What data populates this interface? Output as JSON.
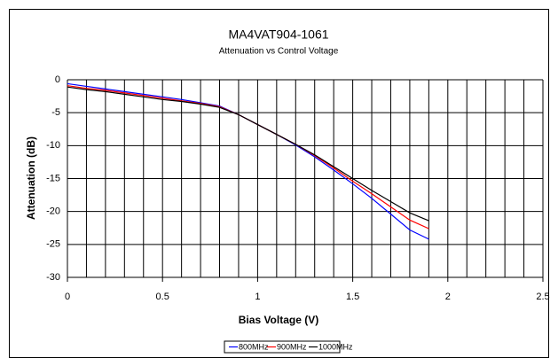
{
  "chart_data": {
    "type": "line",
    "title": "MA4VAT904-1061",
    "subtitle": "Attenuation vs Control Voltage",
    "x_label": "Bias Voltage (V)",
    "y_label": "Attenuation (dB)",
    "x": [
      0,
      0.1,
      0.2,
      0.3,
      0.4,
      0.5,
      0.6,
      0.7,
      0.8,
      0.9,
      1.0,
      1.1,
      1.2,
      1.3,
      1.4,
      1.5,
      1.6,
      1.7,
      1.8,
      1.9
    ],
    "series": [
      {
        "name": "800MHz",
        "color": "#0000ff",
        "values": [
          -0.6,
          -1.0,
          -1.4,
          -1.8,
          -2.2,
          -2.6,
          -3.0,
          -3.5,
          -4.0,
          -5.3,
          -6.8,
          -8.3,
          -9.9,
          -11.7,
          -13.7,
          -15.8,
          -18.0,
          -20.4,
          -22.8,
          -24.2
        ]
      },
      {
        "name": "900MHz",
        "color": "#ff0000",
        "values": [
          -0.9,
          -1.3,
          -1.6,
          -2.0,
          -2.4,
          -2.8,
          -3.2,
          -3.6,
          -4.1,
          -5.3,
          -6.8,
          -8.3,
          -9.8,
          -11.5,
          -13.4,
          -15.4,
          -17.3,
          -19.3,
          -21.3,
          -22.6
        ]
      },
      {
        "name": "1000MHz",
        "color": "#000000",
        "values": [
          -1.1,
          -1.5,
          -1.8,
          -2.2,
          -2.6,
          -3.0,
          -3.3,
          -3.7,
          -4.2,
          -5.3,
          -6.8,
          -8.3,
          -9.8,
          -11.4,
          -13.2,
          -15.0,
          -16.8,
          -18.5,
          -20.2,
          -21.4
        ]
      }
    ],
    "xlim": [
      0,
      2.5
    ],
    "xticks": [
      0,
      0.5,
      1,
      1.5,
      2,
      2.5
    ],
    "xminorticks": [
      0.1,
      0.2,
      0.3,
      0.4,
      0.6,
      0.7,
      0.8,
      0.9,
      1.1,
      1.2,
      1.3,
      1.4,
      1.6,
      1.7,
      1.8,
      1.9,
      2.1,
      2.2,
      2.3,
      2.4
    ],
    "ylim": [
      -30,
      0
    ],
    "yticks": [
      0,
      -5,
      -10,
      -15,
      -20,
      -25,
      -30
    ],
    "grid": true,
    "legend": "bottom"
  }
}
